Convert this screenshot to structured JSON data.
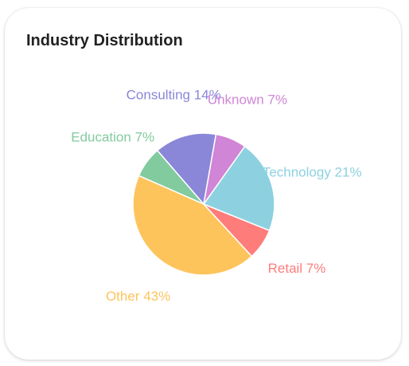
{
  "card": {
    "title": "Industry Distribution"
  },
  "chart_data": {
    "type": "pie",
    "title": "Industry Distribution",
    "start_angle_deg": 80,
    "direction": "counterclockwise",
    "slices": [
      {
        "name": "Consulting",
        "value": 14,
        "label": "Consulting 14%",
        "color": "#8a86d8"
      },
      {
        "name": "Education",
        "value": 7,
        "label": "Education 7%",
        "color": "#82cb9e"
      },
      {
        "name": "Other",
        "value": 43,
        "label": "Other 43%",
        "color": "#fec45c"
      },
      {
        "name": "Retail",
        "value": 7,
        "label": "Retail 7%",
        "color": "#fe7d7b"
      },
      {
        "name": "Technology",
        "value": 21,
        "label": "Technology 21%",
        "color": "#8dd1e0"
      },
      {
        "name": "Unknown",
        "value": 7,
        "label": "Unknown 7%",
        "color": "#d085d6"
      }
    ],
    "slice_border_color": "#ffffff",
    "legend": "none"
  }
}
